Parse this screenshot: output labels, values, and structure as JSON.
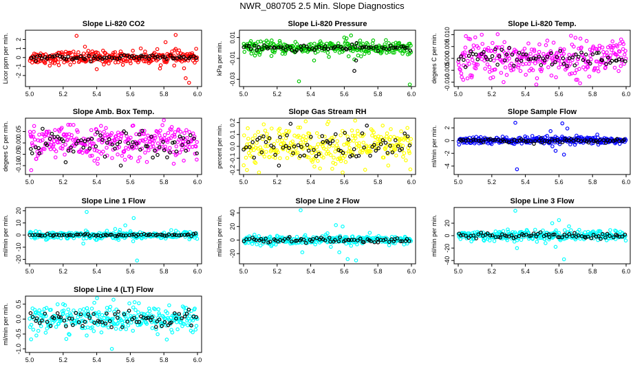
{
  "page": {
    "title": "NWR_080705  2.5 Min. Slope Diagnostics"
  },
  "chart_data": [
    {
      "type": "scatter",
      "title": "Slope Li-820 CO2",
      "ylabel": "Licor ppm per min.",
      "xlim": [
        5.0,
        6.0
      ],
      "ylim": [
        -3,
        2.8
      ],
      "xticks": [
        "5.0",
        "5.2",
        "5.4",
        "5.6",
        "5.8",
        "6.0"
      ],
      "yticks": [
        "-2",
        "-1",
        "0",
        "1",
        "2"
      ],
      "series": [
        {
          "color": "#ff0000",
          "center": 0.0,
          "spread": 0.35,
          "outliers": [
            [
              5.28,
              2.4
            ],
            [
              5.33,
              1.2
            ],
            [
              5.12,
              -0.9
            ],
            [
              5.81,
              1.7
            ],
            [
              5.87,
              2.5
            ],
            [
              5.92,
              -1.2
            ],
            [
              5.93,
              -2.3
            ],
            [
              5.95,
              -2.8
            ],
            [
              5.4,
              -1.3
            ]
          ]
        },
        {
          "color": "#000000",
          "center": 0.0,
          "spread": 0.15,
          "outliers": []
        }
      ]
    },
    {
      "type": "scatter",
      "title": "Slope Li-820 Pressure",
      "ylabel": "kPa per min.",
      "xlim": [
        5.0,
        6.0
      ],
      "ylim": [
        -0.035,
        0.015
      ],
      "xticks": [
        "5.0",
        "5.2",
        "5.4",
        "5.6",
        "5.8",
        "6.0"
      ],
      "yticks": [
        "-0.03",
        "-0.01",
        "0.01"
      ],
      "series": [
        {
          "color": "#00c800",
          "center": 0.0,
          "spread": 0.003,
          "outliers": [
            [
              5.33,
              -0.032
            ],
            [
              5.66,
              -0.011
            ],
            [
              5.64,
              0.012
            ],
            [
              5.99,
              -0.035
            ],
            [
              5.42,
              -0.012
            ],
            [
              5.7,
              -0.008
            ],
            [
              5.6,
              0.01
            ]
          ]
        },
        {
          "color": "#000000",
          "center": 0.0,
          "spread": 0.0015,
          "outliers": [
            [
              5.66,
              -0.022
            ],
            [
              5.67,
              -0.012
            ]
          ]
        }
      ]
    },
    {
      "type": "scatter",
      "title": "Slope Li-820 Temp.",
      "ylabel": "degees C per min.",
      "xlim": [
        5.0,
        6.0
      ],
      "ylim": [
        -0.011,
        0.011
      ],
      "xticks": [
        "5.0",
        "5.2",
        "5.4",
        "5.6",
        "5.8",
        "6.0"
      ],
      "yticks": [
        "-0.010",
        "-0.005",
        "0.000",
        "0.005",
        "0.010"
      ],
      "series": [
        {
          "color": "#ff00ff",
          "center": 0.0,
          "spread": 0.004,
          "outliers": [
            [
              5.03,
              -0.009
            ],
            [
              5.14,
              0.01
            ],
            [
              5.08,
              -0.008
            ],
            [
              5.27,
              -0.01
            ],
            [
              5.71,
              -0.009
            ],
            [
              5.97,
              0.008
            ]
          ]
        },
        {
          "color": "#000000",
          "center": 0.0,
          "spread": 0.002,
          "outliers": []
        }
      ]
    },
    {
      "type": "scatter",
      "title": "Slope Amb. Box Temp.",
      "ylabel": "degees C per min.",
      "xlim": [
        5.0,
        6.0
      ],
      "ylim": [
        -0.13,
        0.1
      ],
      "xticks": [
        "5.0",
        "5.2",
        "5.4",
        "5.6",
        "5.8",
        "6.0"
      ],
      "yticks": [
        "-0.10",
        "-0.05",
        "0.00",
        "0.05"
      ],
      "series": [
        {
          "color": "#ff00ff",
          "center": 0.0,
          "spread": 0.035,
          "outliers": [
            [
              5.01,
              -0.12
            ],
            [
              5.8,
              0.1
            ],
            [
              5.23,
              0.08
            ]
          ]
        },
        {
          "color": "#000000",
          "center": 0.0,
          "spread": 0.03,
          "outliers": []
        }
      ]
    },
    {
      "type": "scatter",
      "title": "Slope Gas Stream RH",
      "ylabel": "percent per min.",
      "xlim": [
        5.0,
        6.0
      ],
      "ylim": [
        -0.22,
        0.22
      ],
      "xticks": [
        "5.0",
        "5.2",
        "5.4",
        "5.6",
        "5.8",
        "6.0"
      ],
      "yticks": [
        "-0.2",
        "-0.1",
        "0.0",
        "0.1",
        "0.2"
      ],
      "series": [
        {
          "color": "#ffff00",
          "center": 0.0,
          "spread": 0.08,
          "outliers": [
            [
              5.37,
              0.21
            ],
            [
              5.59,
              -0.22
            ],
            [
              5.02,
              -0.2
            ]
          ]
        },
        {
          "color": "#000000",
          "center": 0.0,
          "spread": 0.07,
          "outliers": [
            [
              5.28,
              0.19
            ]
          ]
        }
      ]
    },
    {
      "type": "scatter",
      "title": "Slope Sample Flow",
      "ylabel": "ml/min per min.",
      "xlim": [
        5.0,
        6.0
      ],
      "ylim": [
        -5,
        3.2
      ],
      "xticks": [
        "5.0",
        "5.2",
        "5.4",
        "5.6",
        "5.8",
        "6.0"
      ],
      "yticks": [
        "-4",
        "-2",
        "0",
        "2"
      ],
      "series": [
        {
          "color": "#0000ff",
          "center": 0.0,
          "spread": 0.3,
          "outliers": [
            [
              5.35,
              -4.5
            ],
            [
              5.34,
              2.8
            ],
            [
              5.62,
              2.7
            ],
            [
              5.63,
              -2.2
            ],
            [
              5.55,
              1.5
            ],
            [
              5.58,
              -1.6
            ],
            [
              5.65,
              1.9
            ]
          ]
        },
        {
          "color": "#000000",
          "center": 0.0,
          "spread": 0.15,
          "outliers": []
        }
      ]
    },
    {
      "type": "scatter",
      "title": "Slope Line 1 Flow",
      "ylabel": "ml/min per min.",
      "xlim": [
        5.0,
        6.0
      ],
      "ylim": [
        -22,
        21
      ],
      "xticks": [
        "5.0",
        "5.2",
        "5.4",
        "5.6",
        "5.8",
        "6.0"
      ],
      "yticks": [
        "-20",
        "-10",
        "0",
        "10",
        "20"
      ],
      "series": [
        {
          "color": "#00ffff",
          "center": 0.0,
          "spread": 1.5,
          "outliers": [
            [
              5.34,
              19
            ],
            [
              5.32,
              -7
            ],
            [
              5.53,
              -4
            ],
            [
              5.57,
              8
            ],
            [
              5.62,
              14
            ],
            [
              5.64,
              -21
            ],
            [
              5.51,
              5
            ]
          ]
        },
        {
          "color": "#000000",
          "center": 0.0,
          "spread": 0.6,
          "outliers": []
        }
      ]
    },
    {
      "type": "scatter",
      "title": "Slope Line 2 Flow",
      "ylabel": "ml/min per min.",
      "xlim": [
        5.0,
        6.0
      ],
      "ylim": [
        -32,
        45
      ],
      "xticks": [
        "5.0",
        "5.2",
        "5.4",
        "5.6",
        "5.8",
        "6.0"
      ],
      "yticks": [
        "-20",
        "0",
        "20",
        "40"
      ],
      "series": [
        {
          "color": "#00ffff",
          "center": 0.0,
          "spread": 3,
          "outliers": [
            [
              5.34,
              44
            ],
            [
              5.35,
              -18
            ],
            [
              5.55,
              22
            ],
            [
              5.57,
              -18
            ],
            [
              5.62,
              -28
            ],
            [
              5.67,
              -30
            ],
            [
              5.59,
              20
            ],
            [
              5.52,
              -10
            ],
            [
              5.5,
              10
            ]
          ]
        },
        {
          "color": "#000000",
          "center": 0.0,
          "spread": 2,
          "outliers": []
        }
      ]
    },
    {
      "type": "scatter",
      "title": "Slope Line 3 Flow",
      "ylabel": "ml/min per min.",
      "xlim": [
        5.0,
        6.0
      ],
      "ylim": [
        -42,
        42
      ],
      "xticks": [
        "5.0",
        "5.2",
        "5.4",
        "5.6",
        "5.8",
        "6.0"
      ],
      "yticks": [
        "-40",
        "-20",
        "0",
        "20"
      ],
      "series": [
        {
          "color": "#00ffff",
          "center": 0.0,
          "spread": 4,
          "outliers": [
            [
              5.34,
              40
            ],
            [
              5.35,
              -20
            ],
            [
              5.56,
              20
            ],
            [
              5.58,
              -18
            ],
            [
              5.6,
              25
            ],
            [
              5.63,
              -38
            ],
            [
              5.66,
              15
            ],
            [
              5.52,
              -12
            ]
          ]
        },
        {
          "color": "#000000",
          "center": 0.0,
          "spread": 3,
          "outliers": []
        }
      ]
    },
    {
      "type": "scatter",
      "title": "Slope Line 4 (LT) Flow",
      "ylabel": "ml/min per min.",
      "xlim": [
        5.0,
        6.0
      ],
      "ylim": [
        -1.05,
        0.7
      ],
      "xticks": [
        "5.0",
        "5.2",
        "5.4",
        "5.6",
        "5.8",
        "6.0"
      ],
      "yticks": [
        "-1.0",
        "-0.5",
        "0.0",
        "0.5"
      ],
      "series": [
        {
          "color": "#00ffff",
          "center": 0.0,
          "spread": 0.22,
          "outliers": [
            [
              5.49,
              -1.0
            ],
            [
              5.5,
              0.65
            ],
            [
              5.34,
              -0.55
            ],
            [
              5.2,
              0.5
            ],
            [
              5.85,
              -0.45
            ]
          ]
        },
        {
          "color": "#000000",
          "center": 0.0,
          "spread": 0.15,
          "outliers": []
        }
      ]
    }
  ]
}
